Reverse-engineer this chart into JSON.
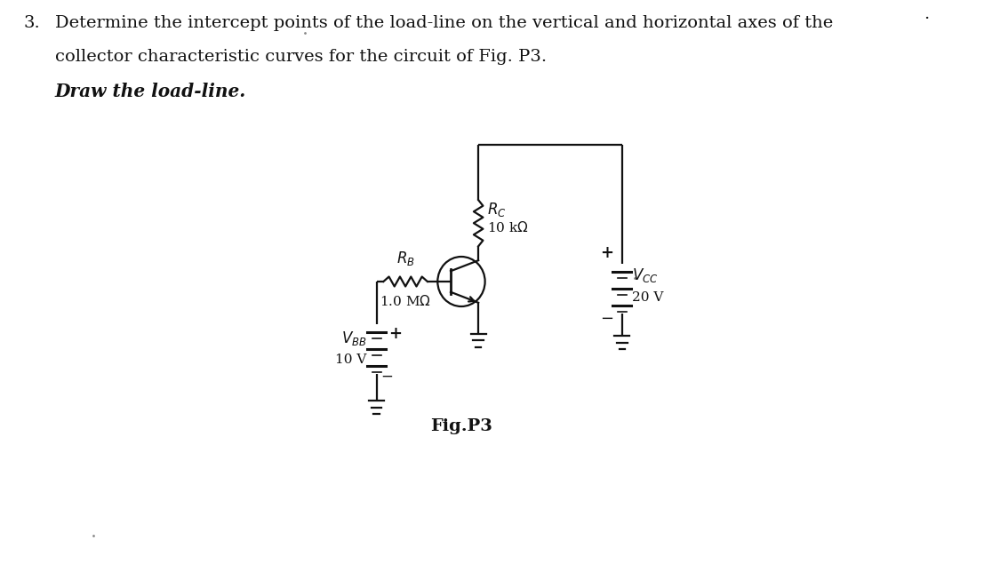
{
  "background_color": "#ffffff",
  "title_number": "3.",
  "line1": "Determine the intercept points of the load-line on the vertical and horizontal axes of the",
  "line2": "collector characteristic curves for the circuit of Fig. P3.",
  "line3": "Draw the load-line.",
  "fig_label": "Fig.P3",
  "RC_label": "$R_C$",
  "RC_value": "10 k$\\Omega$",
  "RB_label": "$R_B$",
  "RB_value": "1.0 M$\\Omega$",
  "VCC_label": "$V_{CC}$",
  "VCC_value": "20 V",
  "VBB_label": "$V_{BB}$",
  "VBB_value": "10 V",
  "plus_sign": "+",
  "minus_sign": "−",
  "text_color": "#111111",
  "circuit_color": "#111111",
  "dot_text": ".",
  "corner_dot_text": "."
}
